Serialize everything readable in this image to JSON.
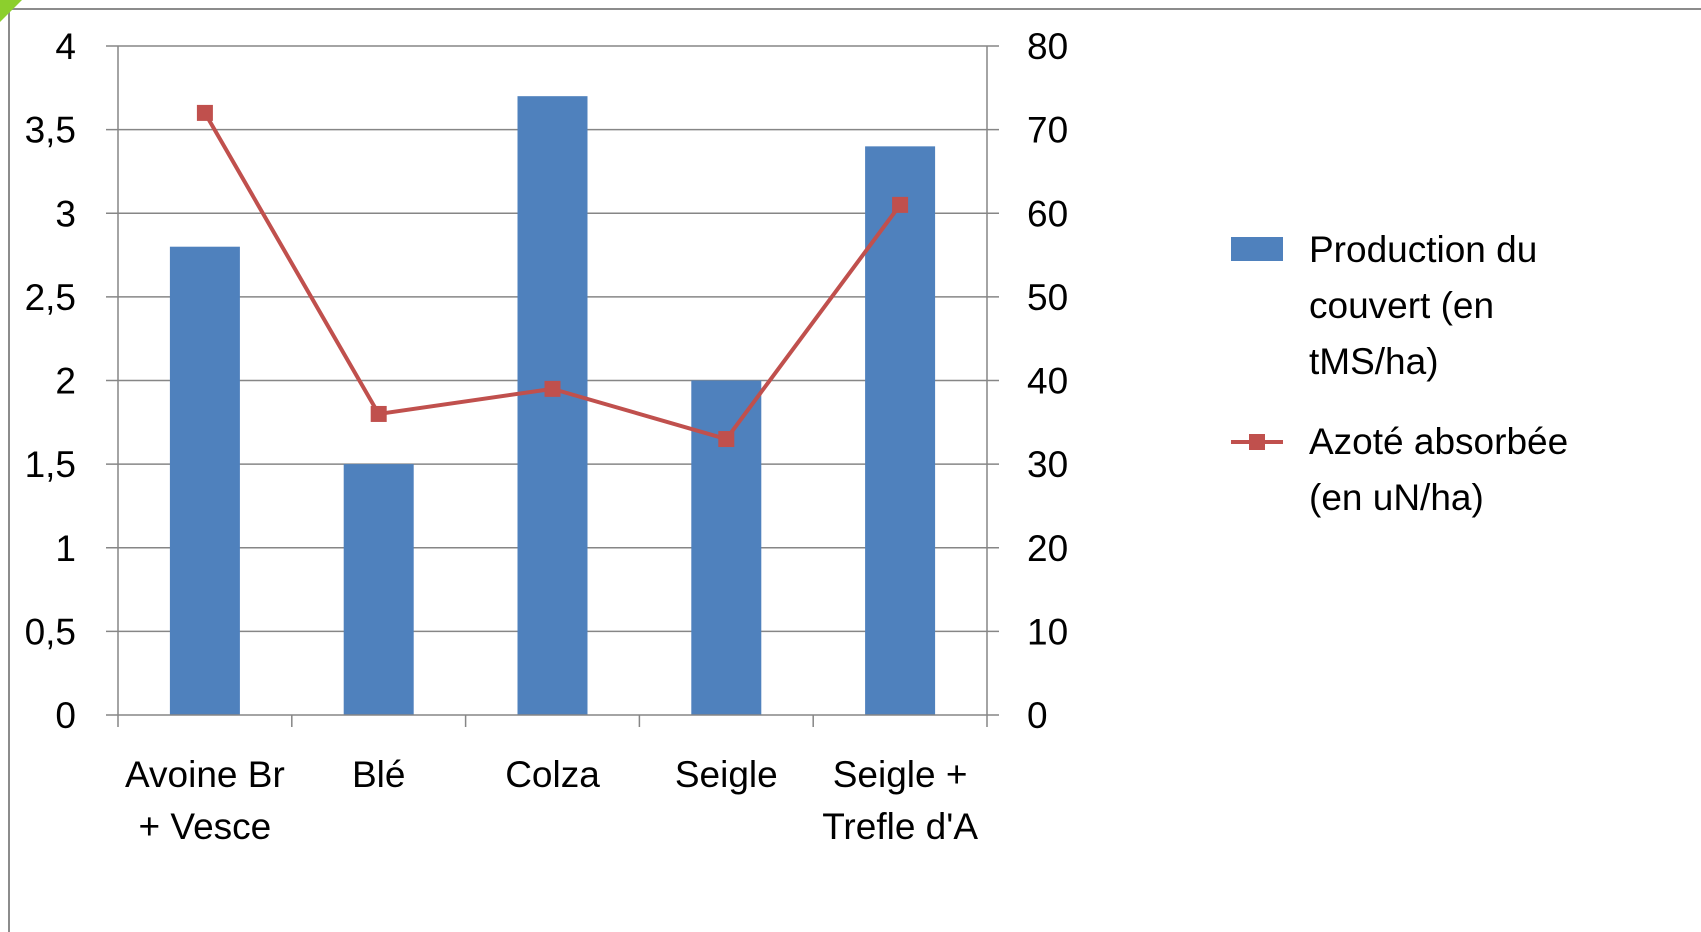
{
  "chart_data": {
    "type": "bar",
    "title": "",
    "xlabel": "",
    "ylabel": "",
    "categories": [
      [
        "Avoine Br",
        "+ Vesce"
      ],
      [
        "Blé"
      ],
      [
        "Colza"
      ],
      [
        "Seigle"
      ],
      [
        "Seigle +",
        "Trefle d'A"
      ]
    ],
    "series": [
      {
        "name": "Production du couvert (en tMS/ha)",
        "legend_lines": [
          "Production du",
          "couvert (en",
          "tMS/ha)"
        ],
        "type": "bar",
        "axis": "left",
        "color": "#4f81bd",
        "values": [
          2.8,
          1.5,
          3.7,
          2.0,
          3.4
        ]
      },
      {
        "name": "Azoté absorbée (en uN/ha)",
        "legend_lines": [
          "Azoté absorbée",
          "(en uN/ha)"
        ],
        "type": "line",
        "axis": "right",
        "color": "#c0504d",
        "marker": "square",
        "values": [
          72,
          36,
          39,
          33,
          61
        ]
      }
    ],
    "y_left": {
      "range": [
        0,
        4
      ],
      "ticks": [
        0,
        0.5,
        1,
        1.5,
        2,
        2.5,
        3,
        3.5,
        4
      ],
      "tick_labels": [
        "0",
        "0,5",
        "1",
        "1,5",
        "2",
        "2,5",
        "3",
        "3,5",
        "4"
      ]
    },
    "y_right": {
      "range": [
        0,
        80
      ],
      "ticks": [
        0,
        10,
        20,
        30,
        40,
        50,
        60,
        70,
        80
      ],
      "tick_labels": [
        "0",
        "10",
        "20",
        "30",
        "40",
        "50",
        "60",
        "70",
        "80"
      ]
    },
    "grid": true,
    "legend_position": "right"
  }
}
